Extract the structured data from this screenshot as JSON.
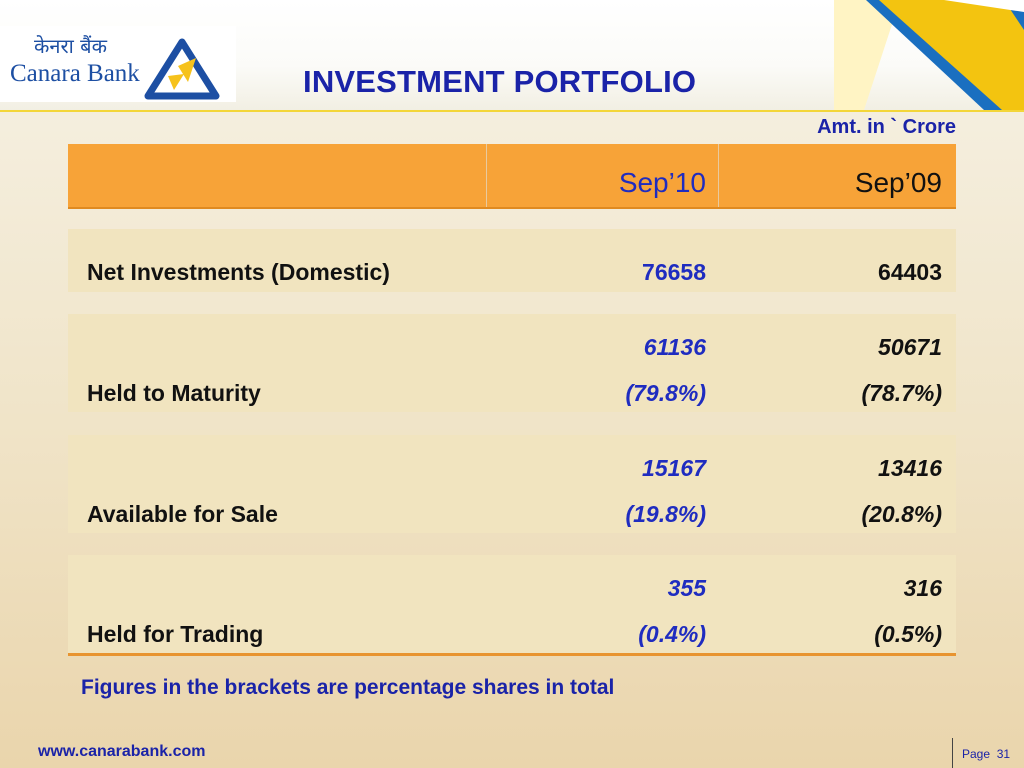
{
  "logo": {
    "hindi": "केनरा बैंक",
    "english": "Canara Bank"
  },
  "title": "INVESTMENT PORTFOLIO",
  "unit_label": "Amt. in ` Crore",
  "columns": {
    "current": "Sep’10",
    "previous": "Sep’09"
  },
  "rows": [
    {
      "label": "Net Investments (Domestic)",
      "current": "76658",
      "previous": "64403"
    },
    {
      "label": "Held to Maturity",
      "current": "61136",
      "current_pct": "(79.8%)",
      "previous": "50671",
      "previous_pct": "(78.7%)"
    },
    {
      "label": "Available for Sale",
      "current": "15167",
      "current_pct": "(19.8%)",
      "previous": "13416",
      "previous_pct": "(20.8%)"
    },
    {
      "label": "Held for Trading",
      "current": "355",
      "current_pct": "(0.4%)",
      "previous": "316",
      "previous_pct": "(0.5%)"
    }
  ],
  "footnote": "Figures in the brackets are percentage shares in total",
  "footer": {
    "url": "www.canarabank.com",
    "page_label": "Page",
    "page_number": "31"
  },
  "colors": {
    "title_blue": "#1a23a8",
    "header_orange": "#f7a338",
    "row_bg": "#f1e4bf",
    "accent_yellow": "#f3d63a"
  }
}
